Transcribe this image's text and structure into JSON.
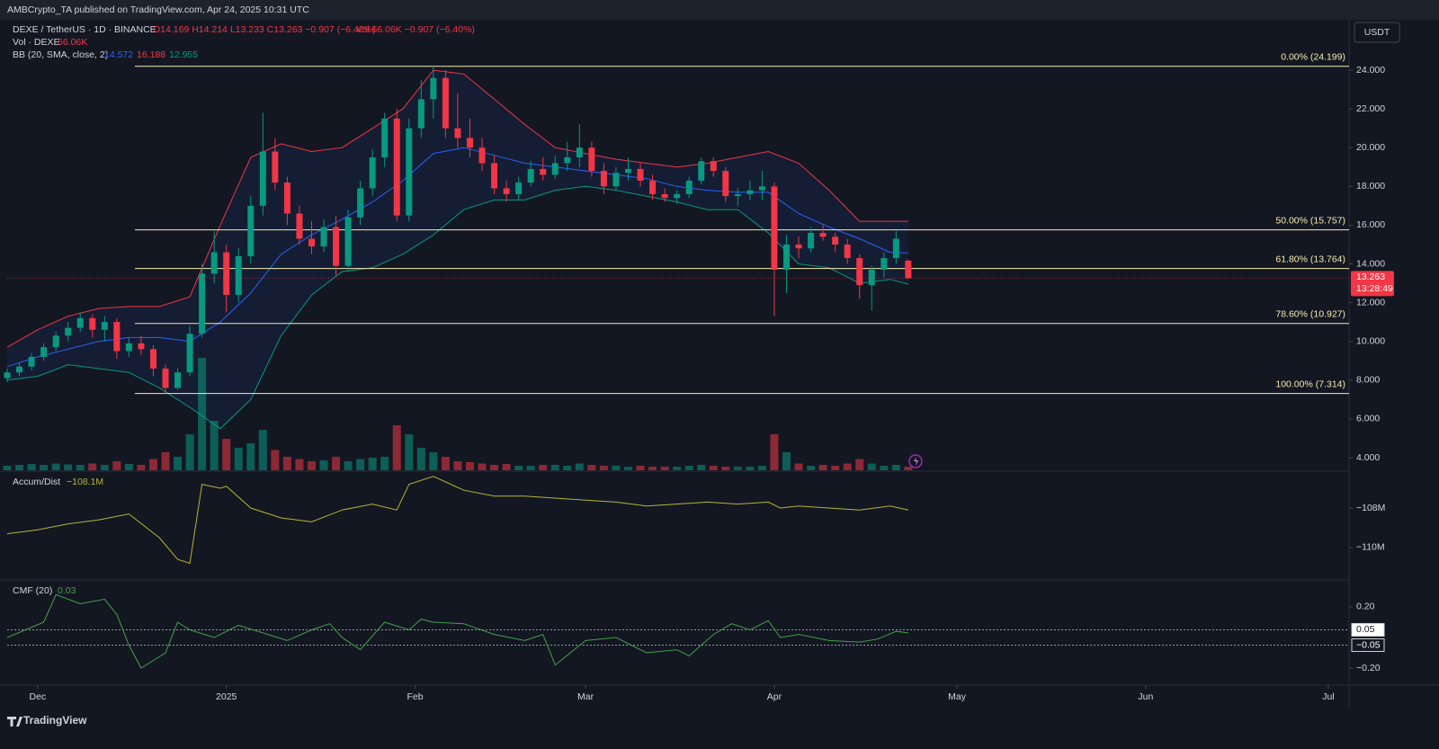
{
  "header": {
    "published": "AMBCrypto_TA published on TradingView.com, Apr 24, 2025 10:31 UTC",
    "brand": "TradingView"
  },
  "chart_data": {
    "type": "candlestick",
    "symbol": "DEXE / TetherUS · 1D · BINANCE",
    "readout": "O14.169 H14.214 L13.233 C13.263 −0.907 (−6.40%)",
    "vol_readout": "Vol 66.06K −0.907 (−6.40%)",
    "vol_name": "Vol · DEXE",
    "vol_value": "66.06K",
    "bb_name": "BB (20, SMA, close, 2)",
    "bb_readout": [
      {
        "value": 14.572,
        "color": "#2962ff"
      },
      {
        "value": 16.188,
        "color": "#f23645"
      },
      {
        "value": 12.955,
        "color": "#089981"
      }
    ],
    "currency": "USDT",
    "last_price": {
      "value": 13.263,
      "label": "13.263"
    },
    "countdown": "13:28:49",
    "up_color": "#089981",
    "down_color": "#f23645",
    "xlim": [
      0,
      220.4
    ],
    "xticks": [
      {
        "value": 5,
        "label": "Dec"
      },
      {
        "value": 36,
        "label": "2025"
      },
      {
        "value": 67,
        "label": "Feb"
      },
      {
        "value": 95,
        "label": "Mar"
      },
      {
        "value": 126,
        "label": "Apr"
      },
      {
        "value": 156,
        "label": "May"
      },
      {
        "value": 187,
        "label": "Jun"
      },
      {
        "value": 217,
        "label": "Jul"
      }
    ],
    "ylim": [
      3.35,
      26.6
    ],
    "yticks": [
      {
        "value": 4,
        "label": "4.000"
      },
      {
        "value": 6,
        "label": "6.000"
      },
      {
        "value": 8,
        "label": "8.000"
      },
      {
        "value": 10,
        "label": "10.000"
      },
      {
        "value": 12,
        "label": "12.000"
      },
      {
        "value": 14,
        "label": "14.000"
      },
      {
        "value": 16,
        "label": "16.000"
      },
      {
        "value": 18,
        "label": "18.000"
      },
      {
        "value": 20,
        "label": "20.000"
      },
      {
        "value": 22,
        "label": "22.000"
      },
      {
        "value": 24,
        "label": "24.000"
      }
    ],
    "fib_levels": [
      {
        "value": 24.199,
        "label": "0.00% (24.199)"
      },
      {
        "value": 15.757,
        "label": "50.00% (15.757)"
      },
      {
        "value": 13.764,
        "label": "61.80% (13.764)"
      },
      {
        "value": 10.927,
        "label": "78.60% (10.927)"
      },
      {
        "value": 7.314,
        "label": "100.00% (7.314)"
      }
    ],
    "x": [
      0,
      2,
      4,
      6,
      8,
      10,
      12,
      14,
      16,
      18,
      20,
      22,
      24,
      26,
      28,
      30,
      32,
      34,
      36,
      38,
      40,
      42,
      44,
      46,
      48,
      50,
      52,
      54,
      56,
      58,
      60,
      62,
      64,
      66,
      68,
      70,
      72,
      74,
      76,
      78,
      80,
      82,
      84,
      86,
      88,
      90,
      92,
      94,
      96,
      98,
      100,
      102,
      104,
      106,
      108,
      110,
      112,
      114,
      116,
      118,
      120,
      122,
      124,
      126,
      128,
      130,
      132,
      134,
      136,
      138,
      140,
      142,
      144,
      146,
      148
    ],
    "ohlc": [
      [
        8.1,
        8.6,
        7.9,
        8.4
      ],
      [
        8.4,
        8.9,
        8.2,
        8.7
      ],
      [
        8.7,
        9.4,
        8.5,
        9.2
      ],
      [
        9.2,
        9.9,
        9.0,
        9.7
      ],
      [
        9.7,
        10.5,
        9.5,
        10.3
      ],
      [
        10.3,
        11.0,
        10.0,
        10.7
      ],
      [
        10.7,
        11.5,
        10.5,
        11.2
      ],
      [
        11.2,
        11.4,
        10.2,
        10.6
      ],
      [
        10.6,
        11.3,
        10.0,
        11.0
      ],
      [
        11.0,
        11.2,
        9.1,
        9.5
      ],
      [
        9.5,
        10.2,
        9.2,
        9.9
      ],
      [
        9.9,
        10.3,
        9.3,
        9.6
      ],
      [
        9.6,
        9.8,
        8.2,
        8.6
      ],
      [
        8.6,
        8.8,
        7.3,
        7.6
      ],
      [
        7.6,
        8.6,
        7.5,
        8.4
      ],
      [
        8.4,
        10.8,
        8.2,
        10.4
      ],
      [
        10.4,
        14.0,
        10.2,
        13.5
      ],
      [
        13.5,
        15.7,
        13.0,
        14.6
      ],
      [
        14.6,
        15.0,
        11.5,
        12.4
      ],
      [
        12.4,
        14.8,
        12.0,
        14.4
      ],
      [
        14.4,
        17.5,
        14.0,
        17.0
      ],
      [
        17.0,
        21.8,
        16.5,
        19.8
      ],
      [
        19.8,
        20.5,
        17.8,
        18.2
      ],
      [
        18.2,
        18.5,
        16.0,
        16.6
      ],
      [
        16.6,
        17.0,
        15.0,
        15.3
      ],
      [
        15.3,
        16.2,
        14.5,
        14.9
      ],
      [
        14.9,
        16.3,
        14.6,
        15.9
      ],
      [
        15.9,
        16.5,
        13.4,
        13.9
      ],
      [
        13.9,
        16.8,
        13.6,
        16.4
      ],
      [
        16.4,
        18.3,
        16.0,
        17.9
      ],
      [
        17.9,
        19.9,
        17.5,
        19.5
      ],
      [
        19.5,
        21.8,
        19.0,
        21.5
      ],
      [
        21.5,
        22.0,
        16.2,
        16.5
      ],
      [
        16.5,
        21.5,
        16.2,
        21.0
      ],
      [
        21.0,
        23.5,
        20.5,
        22.5
      ],
      [
        22.5,
        24.2,
        21.5,
        23.6
      ],
      [
        23.6,
        24.0,
        20.5,
        21.0
      ],
      [
        21.0,
        22.8,
        20.0,
        20.5
      ],
      [
        20.5,
        21.5,
        19.5,
        20.0
      ],
      [
        20.0,
        20.5,
        18.8,
        19.2
      ],
      [
        19.2,
        19.6,
        17.6,
        17.9
      ],
      [
        17.9,
        18.3,
        17.2,
        17.6
      ],
      [
        17.6,
        18.5,
        17.3,
        18.2
      ],
      [
        18.2,
        19.3,
        18.0,
        18.9
      ],
      [
        18.9,
        19.5,
        18.3,
        18.6
      ],
      [
        18.6,
        19.6,
        18.4,
        19.2
      ],
      [
        19.2,
        20.3,
        18.8,
        19.5
      ],
      [
        19.5,
        21.2,
        19.0,
        20.0
      ],
      [
        20.0,
        20.3,
        18.5,
        18.8
      ],
      [
        18.8,
        19.2,
        17.6,
        18.0
      ],
      [
        18.0,
        19.0,
        17.8,
        18.7
      ],
      [
        18.7,
        19.5,
        18.3,
        18.9
      ],
      [
        18.9,
        19.2,
        18.0,
        18.3
      ],
      [
        18.3,
        18.6,
        17.3,
        17.6
      ],
      [
        17.6,
        17.9,
        17.2,
        17.4
      ],
      [
        17.4,
        17.8,
        17.1,
        17.6
      ],
      [
        17.6,
        18.5,
        17.4,
        18.3
      ],
      [
        18.3,
        19.5,
        18.1,
        19.3
      ],
      [
        19.3,
        19.5,
        18.5,
        18.8
      ],
      [
        18.8,
        19.0,
        17.2,
        17.5
      ],
      [
        17.5,
        17.9,
        17.0,
        17.6
      ],
      [
        17.6,
        18.3,
        17.3,
        17.8
      ],
      [
        17.8,
        18.8,
        17.3,
        18.0
      ],
      [
        18.0,
        18.2,
        11.3,
        13.7
      ],
      [
        13.7,
        15.5,
        12.5,
        15.0
      ],
      [
        15.0,
        15.4,
        14.3,
        14.8
      ],
      [
        14.8,
        15.9,
        14.6,
        15.6
      ],
      [
        15.6,
        16.0,
        15.2,
        15.4
      ],
      [
        15.4,
        15.6,
        14.6,
        15.0
      ],
      [
        15.0,
        15.3,
        14.0,
        14.3
      ],
      [
        14.3,
        14.5,
        12.2,
        12.9
      ],
      [
        12.9,
        13.9,
        11.6,
        13.7
      ],
      [
        13.7,
        14.6,
        13.3,
        14.3
      ],
      [
        14.3,
        15.7,
        14.0,
        15.3
      ],
      [
        14.169,
        14.214,
        13.233,
        13.263
      ]
    ],
    "volumes": [
      10,
      12,
      14,
      12,
      15,
      13,
      12,
      15,
      12,
      20,
      14,
      12,
      25,
      40,
      30,
      80,
      250,
      110,
      70,
      50,
      60,
      90,
      45,
      30,
      25,
      20,
      22,
      30,
      20,
      25,
      28,
      30,
      100,
      80,
      50,
      40,
      30,
      20,
      18,
      15,
      12,
      14,
      10,
      10,
      12,
      12,
      10,
      15,
      12,
      10,
      10,
      8,
      10,
      8,
      8,
      8,
      10,
      12,
      10,
      8,
      8,
      8,
      10,
      80,
      40,
      15,
      10,
      12,
      10,
      15,
      25,
      15,
      10,
      12,
      8
    ],
    "vol_lim": [
      0,
      300
    ],
    "bands": [
      {
        "color": "#f23645",
        "x": [
          0,
          5,
          10,
          15,
          20,
          25,
          30,
          35,
          40,
          45,
          50,
          55,
          60,
          65,
          70,
          75,
          80,
          85,
          90,
          95,
          100,
          105,
          110,
          115,
          120,
          125,
          130,
          135,
          140,
          145,
          148
        ],
        "values": [
          9.7,
          10.6,
          11.3,
          11.7,
          11.8,
          11.8,
          12.3,
          16.0,
          19.5,
          20.2,
          19.8,
          20.0,
          21.0,
          22.0,
          24.0,
          23.8,
          22.5,
          21.2,
          20.0,
          19.7,
          19.4,
          19.2,
          19.0,
          19.2,
          19.5,
          19.8,
          19.2,
          17.8,
          16.2,
          16.2,
          16.2
        ]
      },
      {
        "color": "#2962ff",
        "x": [
          0,
          5,
          10,
          15,
          20,
          25,
          30,
          35,
          40,
          45,
          50,
          55,
          60,
          65,
          70,
          75,
          80,
          85,
          90,
          95,
          100,
          105,
          110,
          115,
          120,
          125,
          130,
          135,
          140,
          145,
          148
        ],
        "values": [
          8.7,
          9.2,
          9.6,
          10.0,
          10.2,
          10.2,
          10.0,
          11.0,
          12.5,
          14.5,
          15.5,
          16.3,
          17.2,
          18.3,
          19.7,
          20.0,
          19.6,
          19.2,
          19.0,
          18.8,
          18.6,
          18.4,
          18.0,
          17.8,
          17.7,
          17.7,
          16.6,
          15.9,
          15.3,
          14.6,
          14.572
        ]
      },
      {
        "color": "#089981",
        "x": [
          0,
          5,
          10,
          15,
          20,
          25,
          30,
          35,
          40,
          45,
          50,
          55,
          60,
          65,
          70,
          75,
          80,
          85,
          90,
          95,
          100,
          105,
          110,
          115,
          120,
          125,
          130,
          135,
          140,
          145,
          148
        ],
        "values": [
          8.0,
          8.2,
          8.8,
          8.6,
          8.4,
          7.6,
          6.6,
          5.5,
          7.0,
          10.3,
          12.4,
          13.6,
          13.8,
          14.5,
          15.5,
          16.8,
          17.3,
          17.3,
          17.8,
          18.0,
          17.8,
          17.5,
          17.2,
          16.8,
          16.8,
          15.6,
          14.0,
          13.8,
          13.0,
          13.2,
          12.955
        ]
      }
    ],
    "ad": {
      "name": "Accum/Dist",
      "readout": "−108.1M",
      "color": "#b5b432",
      "x": [
        0,
        5,
        10,
        15,
        20,
        25,
        28,
        30,
        32,
        35,
        36,
        40,
        45,
        50,
        55,
        60,
        64,
        66,
        70,
        75,
        80,
        85,
        90,
        95,
        100,
        105,
        110,
        115,
        120,
        125,
        127,
        130,
        135,
        140,
        145,
        148
      ],
      "values": [
        -109.3,
        -109.1,
        -108.8,
        -108.6,
        -108.3,
        -109.5,
        -110.6,
        -110.8,
        -106.8,
        -107.0,
        -106.9,
        -108.0,
        -108.5,
        -108.7,
        -108.1,
        -107.8,
        -108.1,
        -106.8,
        -106.4,
        -107.1,
        -107.4,
        -107.4,
        -107.5,
        -107.6,
        -107.7,
        -107.9,
        -107.8,
        -107.7,
        -107.8,
        -107.7,
        -108.0,
        -107.9,
        -108.0,
        -108.1,
        -107.9,
        -108.1
      ],
      "ylim": [
        -111.64,
        -106.18
      ],
      "yticks": [
        {
          "value": -108,
          "label": "−108M"
        },
        {
          "value": -110,
          "label": "−110M"
        }
      ]
    },
    "cmf": {
      "name": "CMF (20)",
      "readout": "0.03",
      "color": "#43a047",
      "x": [
        0,
        3,
        6,
        8,
        12,
        16,
        18,
        20,
        22,
        24,
        26,
        28,
        30,
        34,
        38,
        42,
        46,
        50,
        53,
        55,
        58,
        62,
        66,
        68,
        70,
        75,
        80,
        85,
        88,
        90,
        95,
        100,
        105,
        110,
        112,
        116,
        119,
        122,
        125,
        127,
        130,
        135,
        140,
        143,
        146,
        148
      ],
      "values": [
        0.0,
        0.05,
        0.1,
        0.28,
        0.22,
        0.25,
        0.15,
        -0.05,
        -0.2,
        -0.15,
        -0.1,
        0.1,
        0.05,
        0.0,
        0.08,
        0.03,
        -0.02,
        0.05,
        0.09,
        0.0,
        -0.08,
        0.1,
        0.05,
        0.12,
        0.1,
        0.09,
        0.02,
        -0.02,
        0.02,
        -0.18,
        -0.02,
        0.0,
        -0.1,
        -0.08,
        -0.12,
        0.02,
        0.09,
        0.05,
        0.11,
        0.0,
        0.02,
        -0.02,
        -0.03,
        -0.01,
        0.04,
        0.03
      ],
      "ylim": [
        -0.3,
        0.376
      ],
      "yticks": [
        {
          "value": 0.2,
          "label": "0.20"
        },
        {
          "value": -0.2,
          "label": "−0.20"
        }
      ],
      "levels": [
        {
          "value": 0.05,
          "label": "0.05"
        },
        {
          "value": -0.05,
          "label": "−0.05"
        }
      ]
    }
  }
}
